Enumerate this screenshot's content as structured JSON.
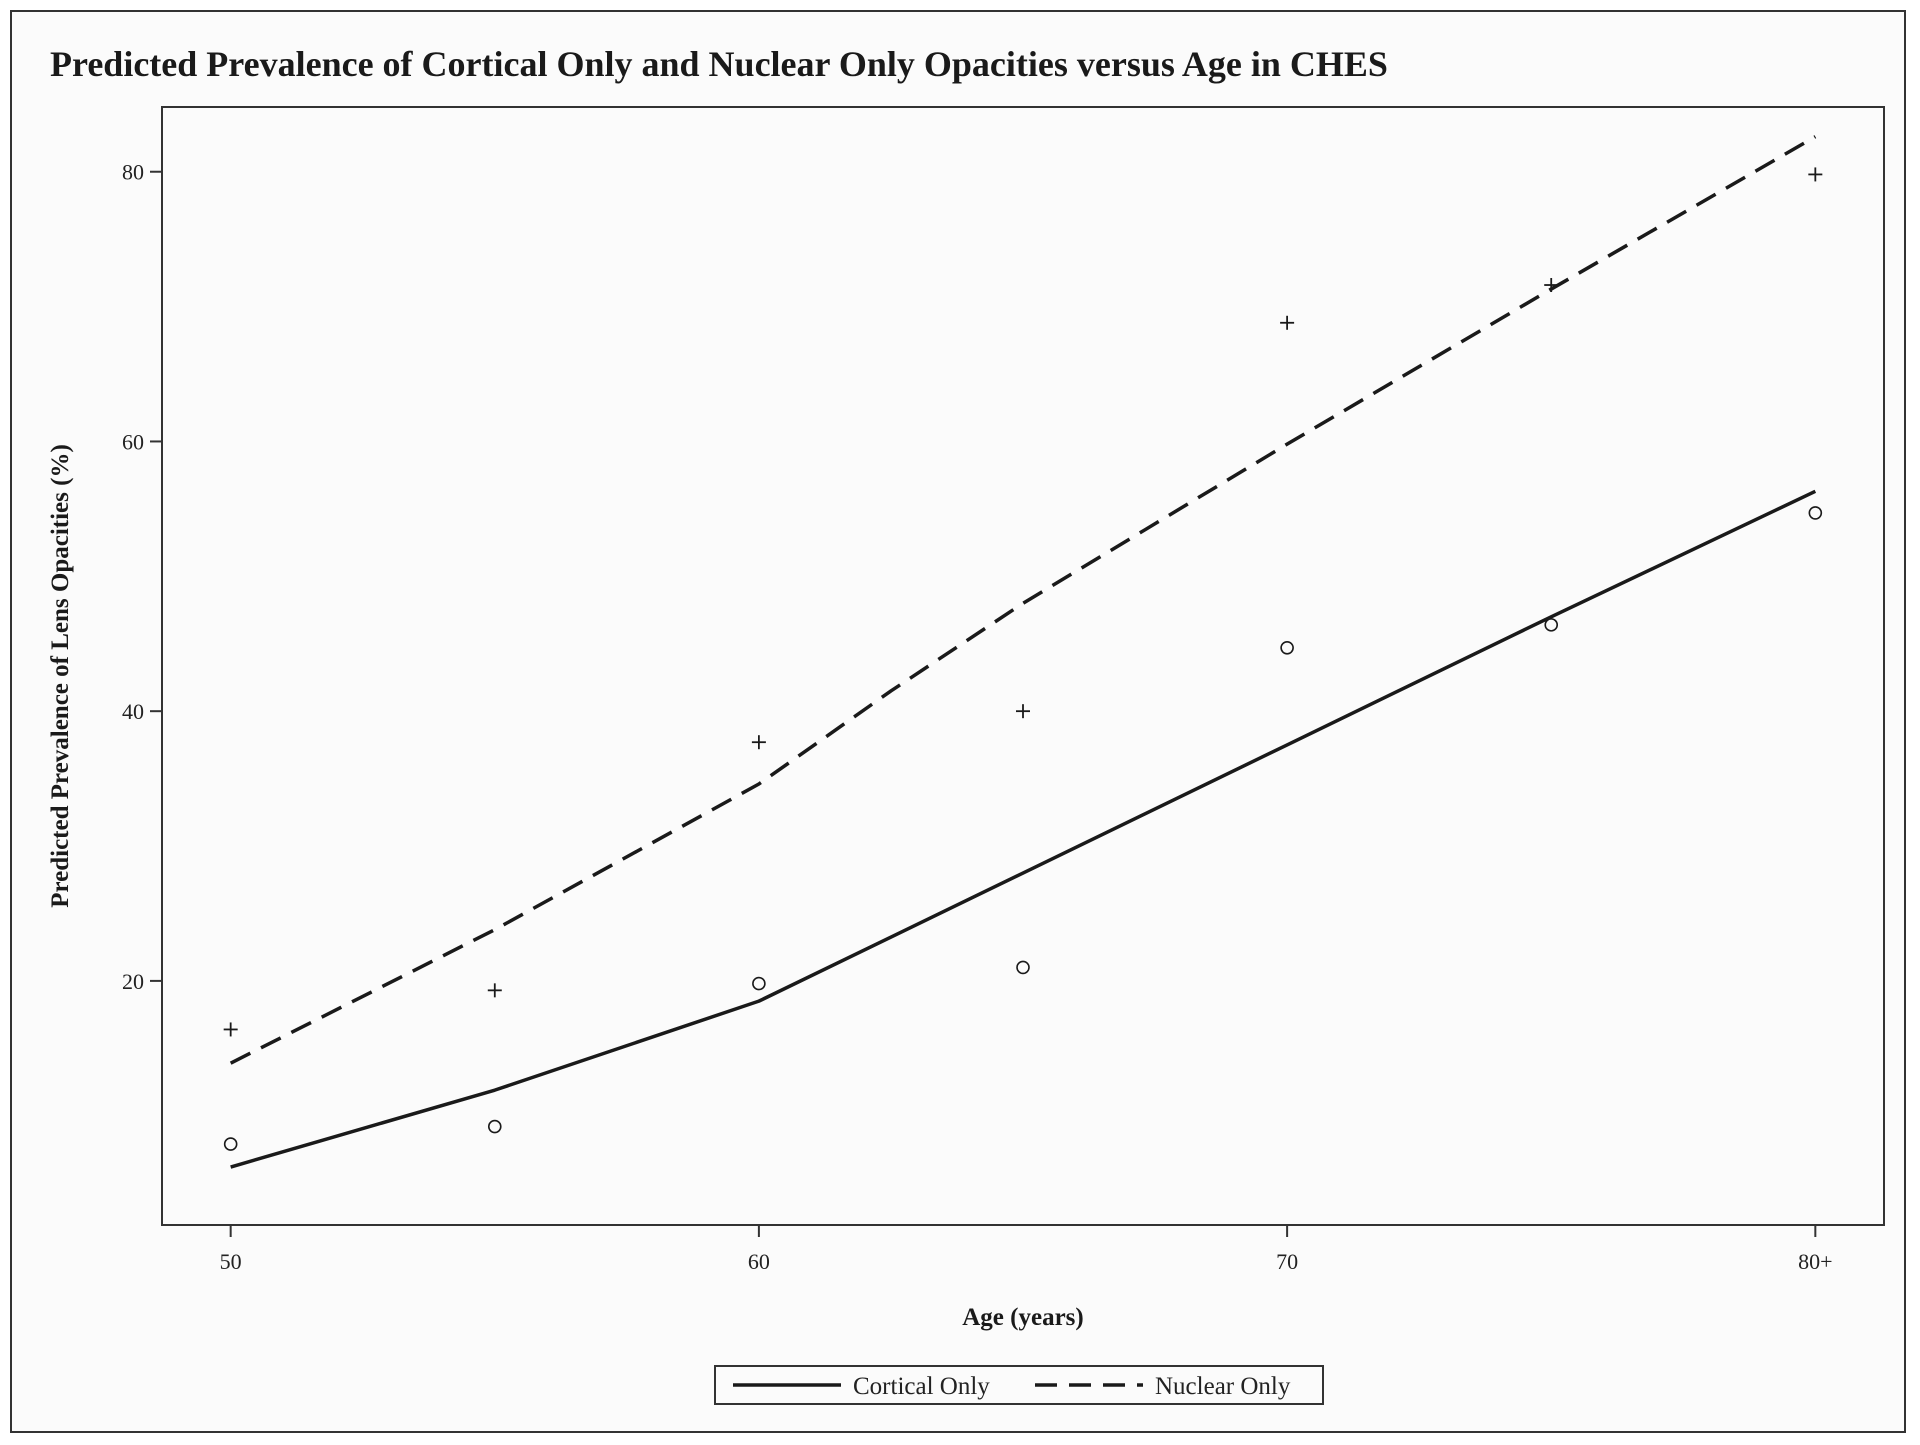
{
  "chart_data": {
    "type": "line",
    "title": "Predicted Prevalence of Cortical Only and Nuclear Only Opacities versus Age in CHES",
    "xlabel": "Age (years)",
    "ylabel": "Predicted Prevalence of Lens Opacities (%)",
    "xlim": [
      48.7,
      81.3
    ],
    "ylim": [
      1.9,
      84.8
    ],
    "x_ticks": [
      50,
      60,
      70,
      80
    ],
    "x_tick_labels": [
      "50",
      "60",
      "70",
      "80+"
    ],
    "y_ticks": [
      20,
      40,
      60,
      80
    ],
    "y_tick_labels": [
      "20",
      "40",
      "60",
      "80"
    ],
    "grid": false,
    "legend_position": "bottom-center",
    "series": [
      {
        "name": "Cortical Only",
        "line_style": "solid",
        "marker": "circle",
        "color": "#1a1a1a",
        "fit_x": [
          50,
          55,
          60,
          65,
          70,
          75,
          80
        ],
        "fit_y": [
          6.2,
          11.9,
          18.5,
          28.0,
          37.5,
          47.0,
          56.3
        ],
        "obs_x": [
          50,
          55,
          60,
          65,
          70,
          75,
          80
        ],
        "obs_y": [
          7.9,
          9.2,
          19.8,
          21.0,
          44.7,
          46.4,
          54.7
        ]
      },
      {
        "name": "Nuclear Only",
        "line_style": "dashed",
        "marker": "plus",
        "color": "#1a1a1a",
        "fit_x": [
          50,
          55,
          60,
          62.5,
          65,
          70,
          75,
          80
        ],
        "fit_y": [
          13.9,
          23.8,
          34.6,
          41.5,
          48.0,
          59.8,
          71.3,
          82.6
        ],
        "obs_x": [
          50,
          55,
          60,
          65,
          70,
          75,
          80
        ],
        "obs_y": [
          16.4,
          19.3,
          37.7,
          40.0,
          68.8,
          71.6,
          79.8
        ]
      }
    ]
  }
}
